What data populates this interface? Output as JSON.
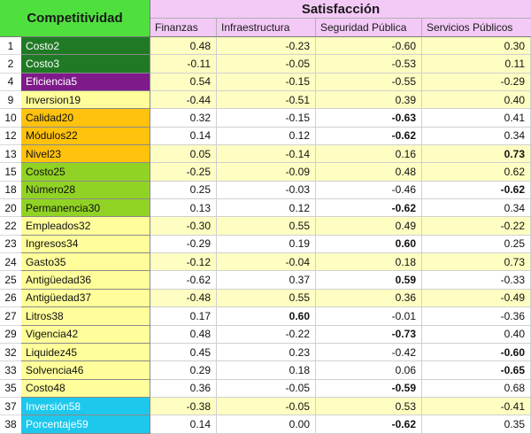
{
  "header": {
    "competitividad": "Competitividad",
    "satisfaccion": "Satisfacción",
    "columns": [
      "Finanzas",
      "Infraestructura",
      "Seguridad Pública",
      "Servicios Públicos"
    ]
  },
  "colors": {
    "dark_green": "#207a25",
    "purple": "#7e1a8a",
    "yellow": "#fffe9a",
    "orange": "#ffc20d",
    "lime": "#91d324",
    "cyan": "#1ec8ec",
    "header_green": "#4fe03e",
    "header_pink": "#f3c9f6"
  },
  "rows": [
    {
      "num": "1",
      "label": "Costo2",
      "group": "dark",
      "bg": "yellow",
      "values": [
        "0.48",
        "-0.23",
        "-0.60",
        "0.30"
      ],
      "bold": []
    },
    {
      "num": "2",
      "label": "Costo3",
      "group": "dark",
      "bg": "yellow",
      "values": [
        "-0.11",
        "-0.05",
        "-0.53",
        "0.11"
      ],
      "bold": []
    },
    {
      "num": "4",
      "label": "Eficiencia5",
      "group": "purple",
      "bg": "yellow",
      "values": [
        "0.54",
        "-0.15",
        "-0.55",
        "-0.29"
      ],
      "bold": []
    },
    {
      "num": "9",
      "label": "Inversion19",
      "group": "yellow",
      "bg": "yellow",
      "values": [
        "-0.44",
        "-0.51",
        "0.39",
        "0.40"
      ],
      "bold": []
    },
    {
      "num": "10",
      "label": "Calidad20",
      "group": "orange",
      "bg": "white",
      "values": [
        "0.32",
        "-0.15",
        "-0.63",
        "0.41"
      ],
      "bold": [
        2
      ]
    },
    {
      "num": "12",
      "label": "Módulos22",
      "group": "orange",
      "bg": "white",
      "values": [
        "0.14",
        "0.12",
        "-0.62",
        "0.34"
      ],
      "bold": [
        2
      ]
    },
    {
      "num": "13",
      "label": "Nivel23",
      "group": "orange",
      "bg": "yellow",
      "values": [
        "0.05",
        "-0.14",
        "0.16",
        "0.73"
      ],
      "bold": [
        3
      ]
    },
    {
      "num": "15",
      "label": "Costo25",
      "group": "lime",
      "bg": "yellow",
      "values": [
        "-0.25",
        "-0.09",
        "0.48",
        "0.62"
      ],
      "bold": []
    },
    {
      "num": "18",
      "label": "Número28",
      "group": "lime",
      "bg": "white",
      "values": [
        "0.25",
        "-0.03",
        "-0.46",
        "-0.62"
      ],
      "bold": [
        3
      ]
    },
    {
      "num": "20",
      "label": "Permanencia30",
      "group": "lime",
      "bg": "white",
      "values": [
        "0.13",
        "0.12",
        "-0.62",
        "0.34"
      ],
      "bold": [
        2
      ]
    },
    {
      "num": "22",
      "label": "Empleados32",
      "group": "yellow",
      "bg": "yellow",
      "values": [
        "-0.30",
        "0.55",
        "0.49",
        "-0.22"
      ],
      "bold": []
    },
    {
      "num": "23",
      "label": "Ingresos34",
      "group": "yellow",
      "bg": "white",
      "values": [
        "-0.29",
        "0.19",
        "0.60",
        "0.25"
      ],
      "bold": [
        2
      ]
    },
    {
      "num": "24",
      "label": "Gasto35",
      "group": "yellow",
      "bg": "yellow",
      "values": [
        "-0.12",
        "-0.04",
        "0.18",
        "0.73"
      ],
      "bold": []
    },
    {
      "num": "25",
      "label": "Antigüedad36",
      "group": "yellow",
      "bg": "white",
      "values": [
        "-0.62",
        "0.37",
        "0.59",
        "-0.33"
      ],
      "bold": [
        2
      ]
    },
    {
      "num": "26",
      "label": "Antigüedad37",
      "group": "yellow",
      "bg": "yellow",
      "values": [
        "-0.48",
        "0.55",
        "0.36",
        "-0.49"
      ],
      "bold": []
    },
    {
      "num": "27",
      "label": "Litros38",
      "group": "yellow",
      "bg": "white",
      "values": [
        "0.17",
        "0.60",
        "-0.01",
        "-0.36"
      ],
      "bold": [
        1
      ]
    },
    {
      "num": "29",
      "label": "Vigencia42",
      "group": "yellow",
      "bg": "white",
      "values": [
        "0.48",
        "-0.22",
        "-0.73",
        "0.40"
      ],
      "bold": [
        2
      ]
    },
    {
      "num": "32",
      "label": "Liquidez45",
      "group": "yellow",
      "bg": "white",
      "values": [
        "0.45",
        "0.23",
        "-0.42",
        "-0.60"
      ],
      "bold": [
        3
      ]
    },
    {
      "num": "33",
      "label": "Solvencia46",
      "group": "yellow",
      "bg": "white",
      "values": [
        "0.29",
        "0.18",
        "0.06",
        "-0.65"
      ],
      "bold": [
        3
      ]
    },
    {
      "num": "35",
      "label": "Costo48",
      "group": "yellow",
      "bg": "white",
      "values": [
        "0.36",
        "-0.05",
        "-0.59",
        "0.68"
      ],
      "bold": [
        2
      ]
    },
    {
      "num": "37",
      "label": "Inversión58",
      "group": "cyan",
      "bg": "yellow",
      "values": [
        "-0.38",
        "-0.05",
        "0.53",
        "-0.41"
      ],
      "bold": []
    },
    {
      "num": "38",
      "label": "Porcentaje59",
      "group": "cyan",
      "bg": "white",
      "values": [
        "0.14",
        "0.00",
        "-0.62",
        "0.35"
      ],
      "bold": [
        2
      ]
    }
  ]
}
